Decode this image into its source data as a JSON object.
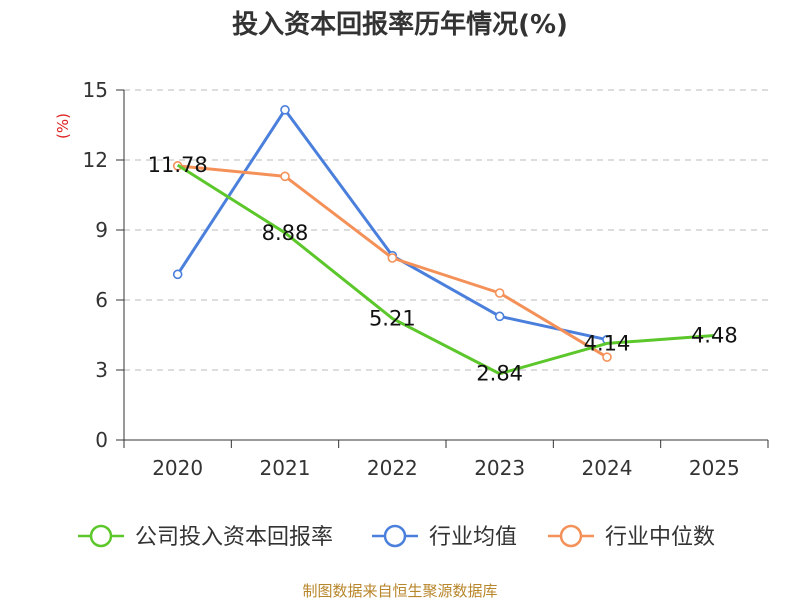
{
  "chart_data": {
    "type": "line",
    "title": "投入资本回报率历年情况(%)",
    "ylabel": "(%)",
    "xlabel": "",
    "categories": [
      "2020",
      "2021",
      "2022",
      "2023",
      "2024",
      "2025"
    ],
    "ylim": [
      0,
      15
    ],
    "yticks": [
      0,
      3,
      6,
      9,
      12,
      15
    ],
    "grid": true,
    "legend_position": "bottom",
    "series": [
      {
        "name": "公司投入资本回报率",
        "color": "#5cc72b",
        "values": [
          11.78,
          8.88,
          5.21,
          2.84,
          4.14,
          4.48
        ],
        "labels": [
          "11.78",
          "8.88",
          "5.21",
          "2.84",
          "4.14",
          "4.48"
        ],
        "show_markers": false
      },
      {
        "name": "行业均值",
        "color": "#4a7fdc",
        "values": [
          7.1,
          14.15,
          7.9,
          5.3,
          4.3,
          null
        ],
        "show_markers": true
      },
      {
        "name": "行业中位数",
        "color": "#f49159",
        "values": [
          11.75,
          11.3,
          7.8,
          6.3,
          3.55,
          null
        ],
        "show_markers": true
      }
    ]
  },
  "footer": {
    "source": "制图数据来自恒生聚源数据库",
    "source_color": "#b8862b"
  },
  "colors": {
    "unit_label": "#e02020",
    "axis": "#333333",
    "grid": "#bbbbbb"
  }
}
